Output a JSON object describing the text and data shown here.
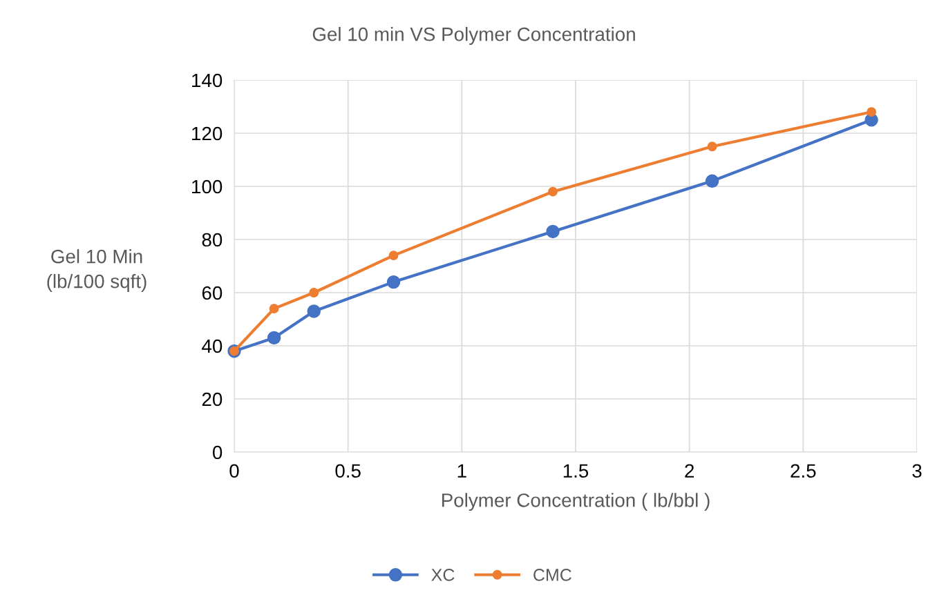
{
  "chart_data": {
    "type": "line",
    "title": "Gel 10 min VS Polymer Concentration",
    "xlabel": "Polymer Concentration ( lb/bbl )",
    "ylabel": "Gel 10 Min\n(lb/100 sqft)",
    "x": [
      0,
      0.175,
      0.35,
      0.7,
      1.4,
      2.1,
      2.8
    ],
    "series": [
      {
        "name": "XC",
        "color": "#4472c4",
        "values": [
          38,
          43,
          53,
          64,
          83,
          102,
          125
        ]
      },
      {
        "name": "CMC",
        "color": "#ed7d31",
        "values": [
          38,
          54,
          60,
          74,
          98,
          115,
          128
        ]
      }
    ],
    "xlim": [
      0,
      3
    ],
    "xticks": [
      0,
      0.5,
      1,
      1.5,
      2,
      2.5,
      3
    ],
    "ylim": [
      0,
      140
    ],
    "yticks": [
      0,
      20,
      40,
      60,
      80,
      100,
      120,
      140
    ],
    "grid": true,
    "legend": "bottom",
    "marker": "circle",
    "line_style": "solid"
  }
}
